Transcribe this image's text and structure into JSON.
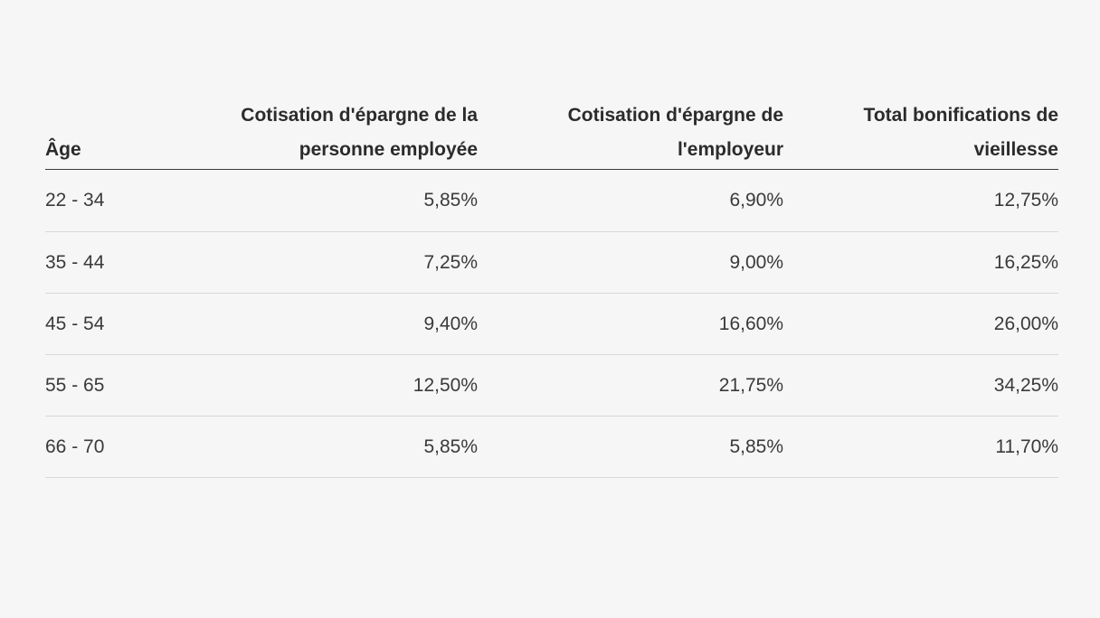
{
  "table": {
    "headers": [
      "Âge",
      "Cotisation d'épargne de la personne employée",
      "Cotisation d'épargne de l'employeur",
      "Total bonifications de vieillesse"
    ],
    "rows": [
      [
        "22 - 34",
        "5,85%",
        "6,90%",
        "12,75%"
      ],
      [
        "35 - 44",
        "7,25%",
        "9,00%",
        "16,25%"
      ],
      [
        "45 - 54",
        "9,40%",
        "16,60%",
        "26,00%"
      ],
      [
        "55 - 65",
        "12,50%",
        "21,75%",
        "34,25%"
      ],
      [
        "66 - 70",
        "5,85%",
        "5,85%",
        "11,70%"
      ]
    ]
  }
}
